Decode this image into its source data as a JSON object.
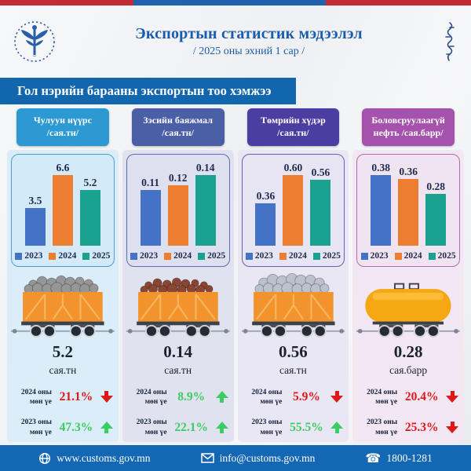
{
  "header": {
    "title": "Экспортын статистик мэдээлэл",
    "subtitle": "/ 2025 оны эхний 1 сар /"
  },
  "banner": {
    "title": "Гол нэрийн барааны экспортын тоо хэмжээ"
  },
  "legend": {
    "items": [
      {
        "label": "2023",
        "color": "#4472c4"
      },
      {
        "label": "2024",
        "color": "#ed7d31"
      },
      {
        "label": "2025",
        "color": "#1aa190"
      }
    ]
  },
  "status_colors": {
    "up_green": "#3bcd63",
    "down_red": "#e01717"
  },
  "chart_data": [
    {
      "type": "bar",
      "title": "Чулуун нүүрс /сая.тн/",
      "categories": [
        "2023",
        "2024",
        "2025"
      ],
      "values": [
        3.5,
        6.6,
        5.2
      ],
      "labels": [
        "3.5",
        "6.6",
        "5.2"
      ],
      "ylim": [
        0,
        6.6
      ],
      "legend_position": "bottom"
    },
    {
      "type": "bar",
      "title": "Зэсийн баяжмал /сая.тн/",
      "categories": [
        "2023",
        "2024",
        "2025"
      ],
      "values": [
        0.11,
        0.12,
        0.14
      ],
      "labels": [
        "0.11",
        "0.12",
        "0.14"
      ],
      "ylim": [
        0,
        0.14
      ],
      "legend_position": "bottom"
    },
    {
      "type": "bar",
      "title": "Төмрийн хүдэр /сая.тн/",
      "categories": [
        "2023",
        "2024",
        "2025"
      ],
      "values": [
        0.36,
        0.6,
        0.56
      ],
      "labels": [
        "0.36",
        "0.60",
        "0.56"
      ],
      "ylim": [
        0,
        0.6
      ],
      "legend_position": "bottom"
    },
    {
      "type": "bar",
      "title": "Боловсруулаагүй нефть /сая.барр/",
      "categories": [
        "2023",
        "2024",
        "2025"
      ],
      "values": [
        0.38,
        0.36,
        0.28
      ],
      "labels": [
        "0.38",
        "0.36",
        "0.28"
      ],
      "ylim": [
        0,
        0.38
      ],
      "legend_position": "bottom"
    }
  ],
  "columns": [
    {
      "header_line1": "Чулуун нүүрс",
      "header_line2": "/сая.тн/",
      "header_color": "#2c99d3",
      "card_bg": "#daedf8",
      "chart_bg": "#d3eaf9",
      "chart_border": "#4e9ed2",
      "wagon": {
        "type": "open",
        "cargo_color": "#969696"
      },
      "total": "5.2",
      "unit": "сая.тн",
      "stats": [
        {
          "label_line1": "2024 оны",
          "label_line2": "мөн үе",
          "value": "21.1%",
          "direction": "down",
          "color": "#e01717"
        },
        {
          "label_line1": "2023 оны",
          "label_line2": "мөн үе",
          "value": "47.3%",
          "direction": "up",
          "color": "#3bcd63"
        }
      ]
    },
    {
      "header_line1": "Зэсийн баяжмал",
      "header_line2": "/сая.тн/",
      "header_color": "#4a5fa6",
      "card_bg": "#e0e2f0",
      "chart_bg": "#dee0f0",
      "chart_border": "#5c6fb2",
      "wagon": {
        "type": "open",
        "cargo_color": "#8a4632"
      },
      "total": "0.14",
      "unit": "сая.тн",
      "stats": [
        {
          "label_line1": "2024 оны",
          "label_line2": "мөн үе",
          "value": "8.9%",
          "direction": "up",
          "color": "#3bcd63"
        },
        {
          "label_line1": "2023 оны",
          "label_line2": "мөн үе",
          "value": "22.1%",
          "direction": "up",
          "color": "#3bcd63"
        }
      ]
    },
    {
      "header_line1": "Төмрийн хүдэр",
      "header_line2": "/сая.тн/",
      "header_color": "#4c3da1",
      "card_bg": "#e9e7f4",
      "chart_bg": "#e7e5f3",
      "chart_border": "#6c5fb4",
      "wagon": {
        "type": "open",
        "cargo_color": "#bcc2cc"
      },
      "total": "0.56",
      "unit": "сая.тн",
      "stats": [
        {
          "label_line1": "2024 оны",
          "label_line2": "мөн үе",
          "value": "5.9%",
          "direction": "down",
          "color": "#e01717"
        },
        {
          "label_line1": "2023 оны",
          "label_line2": "мөн үе",
          "value": "55.5%",
          "direction": "up",
          "color": "#3bcd63"
        }
      ]
    },
    {
      "header_line1": "Боловсруулаагүй",
      "header_line2": "нефть /сая.барр/",
      "header_color": "#a452ab",
      "card_bg": "#f2e7f3",
      "chart_bg": "#f0e4f1",
      "chart_border": "#b06ab4",
      "wagon": {
        "type": "tank",
        "cargo_color": "#f6a714"
      },
      "total": "0.28",
      "unit": "сая.барр",
      "stats": [
        {
          "label_line1": "2024 оны",
          "label_line2": "мөн үе",
          "value": "20.4%",
          "direction": "down",
          "color": "#e01717"
        },
        {
          "label_line1": "2023 оны",
          "label_line2": "мөн үе",
          "value": "25.3%",
          "direction": "down",
          "color": "#e01717"
        }
      ]
    }
  ],
  "footer": {
    "website": "www.customs.gov.mn",
    "email": "info@customs.gov.mn",
    "phone": "1800-1281"
  },
  "topbar_colors": {
    "red": "#c32b35",
    "blue": "#2062ae"
  }
}
